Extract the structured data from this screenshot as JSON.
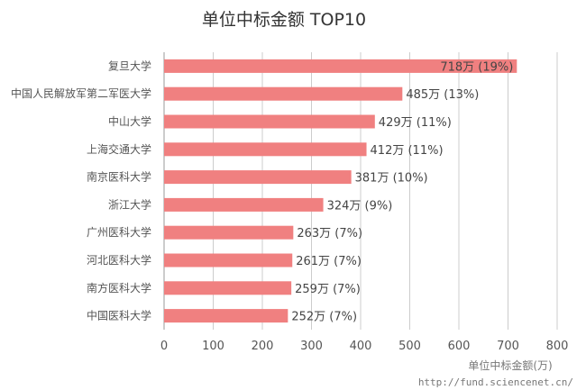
{
  "chart_data": {
    "type": "bar",
    "orientation": "horizontal",
    "title": "单位中标金额 TOP10",
    "xlabel": "单位中标金额(万)",
    "ylabel": "",
    "xlim": [
      0,
      800
    ],
    "x_ticks": [
      "0",
      "100",
      "200",
      "300",
      "400",
      "500",
      "600",
      "700",
      "800"
    ],
    "grid": true,
    "categories": [
      "复旦大学",
      "中国人民解放军第二军医大学",
      "中山大学",
      "上海交通大学",
      "南京医科大学",
      "浙江大学",
      "广州医科大学",
      "河北医科大学",
      "南方医科大学",
      "中国医科大学"
    ],
    "values": [
      718,
      485,
      429,
      412,
      381,
      324,
      263,
      261,
      259,
      252
    ],
    "data_labels": [
      "718万 (19%)",
      "485万 (13%)",
      "429万 (11%)",
      "412万 (11%)",
      "381万 (10%)",
      "324万 (9%)",
      "263万 (7%)",
      "261万 (7%)",
      "259万 (7%)",
      "252万 (7%)"
    ],
    "bar_color": "#f08080",
    "source": "http://fund.sciencenet.cn/"
  }
}
